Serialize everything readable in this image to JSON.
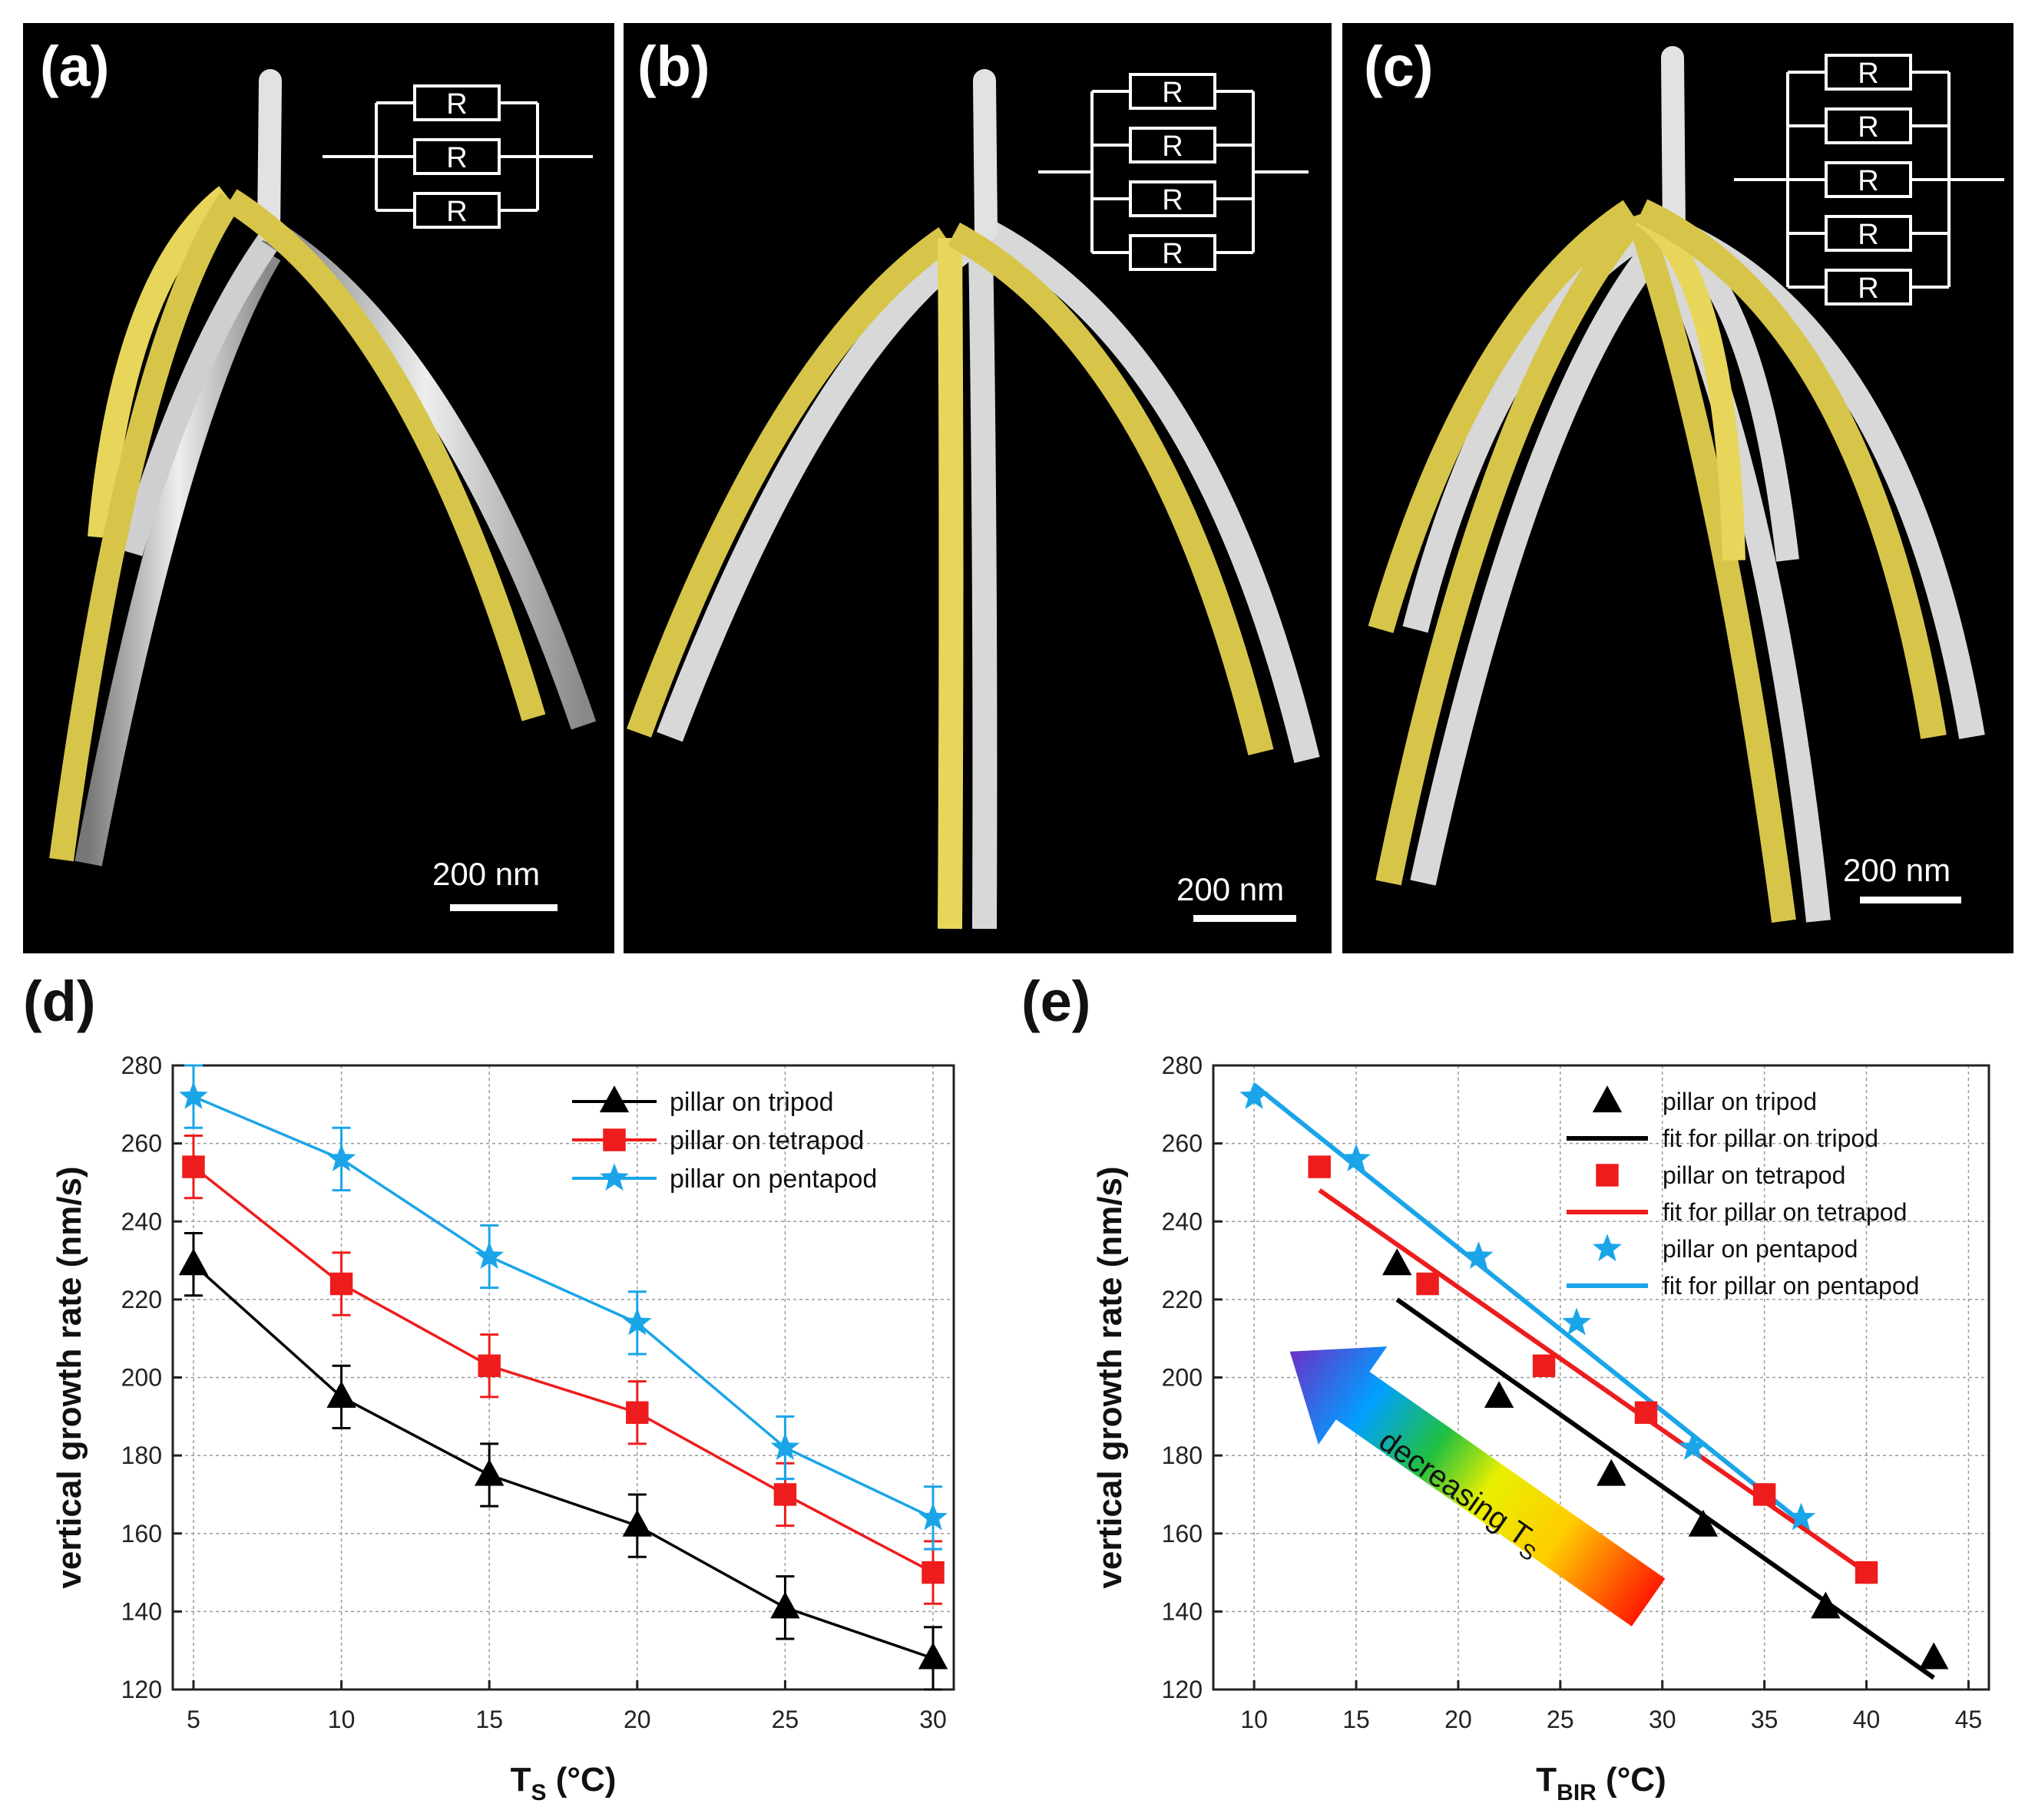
{
  "panels": {
    "a": {
      "label": "(a)",
      "scale": "200 nm",
      "resistor_label": "R",
      "resistor_count": 3
    },
    "b": {
      "label": "(b)",
      "scale": "200 nm",
      "resistor_label": "R",
      "resistor_count": 4
    },
    "c": {
      "label": "(c)",
      "scale": "200 nm",
      "resistor_label": "R",
      "resistor_count": 5
    }
  },
  "colors": {
    "tripod": "#000000",
    "tetrapod": "#ee1c1c",
    "pentapod": "#1aa5e8",
    "highlight": "#e8d65a",
    "pillar": "#d8d8d8"
  },
  "chart_data": [
    {
      "id": "d",
      "panel_label": "(d)",
      "type": "line",
      "xlabel_main": "T",
      "xlabel_sub": "S",
      "xlabel_unit": " (°C)",
      "ylabel": "vertical growth rate (nm/s)",
      "xlim": [
        4.3,
        30.7
      ],
      "ylim": [
        120,
        280
      ],
      "xticks": [
        5,
        10,
        15,
        20,
        25,
        30
      ],
      "yticks": [
        120,
        140,
        160,
        180,
        200,
        220,
        240,
        260,
        280
      ],
      "grid": true,
      "legend_position": "top-right",
      "x": [
        5,
        10,
        15,
        20,
        25,
        30
      ],
      "series": [
        {
          "name": "pillar on tripod",
          "marker": "triangle",
          "color": "#000000",
          "values": [
            229,
            195,
            175,
            162,
            141,
            128
          ],
          "error": 8
        },
        {
          "name": "pillar on tetrapod",
          "marker": "square",
          "color": "#ee1c1c",
          "values": [
            254,
            224,
            203,
            191,
            170,
            150
          ],
          "error": 8
        },
        {
          "name": "pillar on pentapod",
          "marker": "star",
          "color": "#1aa5e8",
          "values": [
            272,
            256,
            231,
            214,
            182,
            164
          ],
          "error": 8
        }
      ]
    },
    {
      "id": "e",
      "panel_label": "(e)",
      "type": "scatter",
      "xlabel_main": "T",
      "xlabel_sub": "BIR",
      "xlabel_unit": " (°C)",
      "ylabel": "vertical growth rate (nm/s)",
      "xlim": [
        8,
        46
      ],
      "ylim": [
        120,
        280
      ],
      "xticks": [
        10,
        15,
        20,
        25,
        30,
        35,
        40,
        45
      ],
      "yticks": [
        120,
        140,
        160,
        180,
        200,
        220,
        240,
        260,
        280
      ],
      "grid": true,
      "legend_position": "top-right",
      "series": [
        {
          "name": "pillar on tripod",
          "marker": "triangle",
          "color": "#000000",
          "x": [
            17,
            22,
            27.5,
            32,
            38,
            43.3
          ],
          "values": [
            229,
            195,
            175,
            162,
            141,
            128
          ]
        },
        {
          "name": "pillar on tetrapod",
          "marker": "square",
          "color": "#ee1c1c",
          "x": [
            13.2,
            18.5,
            24.2,
            29.2,
            35,
            40
          ],
          "values": [
            254,
            224,
            203,
            191,
            170,
            150
          ]
        },
        {
          "name": "pillar on pentapod",
          "marker": "star",
          "color": "#1aa5e8",
          "x": [
            10,
            15,
            21,
            25.8,
            31.5,
            36.8
          ],
          "values": [
            272,
            256,
            231,
            214,
            182,
            164
          ]
        }
      ],
      "fits": [
        {
          "name": "fit for pillar on tripod",
          "color": "#000000",
          "x": [
            17,
            43.3
          ],
          "values": [
            220,
            123
          ]
        },
        {
          "name": "fit for pillar on tetrapod",
          "color": "#ee1c1c",
          "x": [
            13.2,
            40
          ],
          "values": [
            248,
            150
          ]
        },
        {
          "name": "fit for pillar on pentapod",
          "color": "#1aa5e8",
          "x": [
            10,
            36.8
          ],
          "values": [
            275,
            163
          ]
        }
      ],
      "legend_order": [
        "pillar on tripod",
        "fit for pillar on tripod",
        "pillar on tetrapod",
        "fit for pillar on tetrapod",
        "pillar on pentapod",
        "fit for pillar on pentapod"
      ],
      "annotation": {
        "text": "decreasing T",
        "sub": "S"
      }
    }
  ]
}
